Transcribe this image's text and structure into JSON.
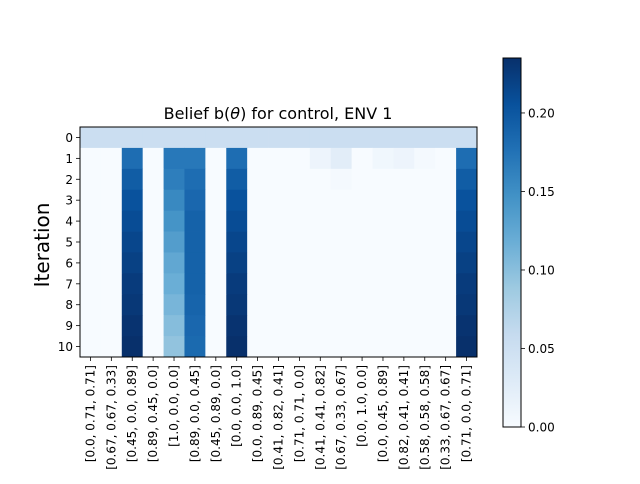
{
  "chart_data": {
    "type": "heatmap",
    "title": "Belief b(θ) for control, ENV 1",
    "title_parts": {
      "prefix": "Belief b(",
      "symbol": "θ",
      "suffix": ") for control, ENV 1"
    },
    "ylabel": "Iteration",
    "xlabel": "",
    "colormap": "Blues",
    "colorbar": {
      "vmin": 0.0,
      "vmax": 0.235,
      "ticks": [
        "0.00",
        "0.05",
        "0.10",
        "0.15",
        "0.20"
      ],
      "tick_values": [
        0.0,
        0.05,
        0.1,
        0.15,
        0.2
      ]
    },
    "y_categories": [
      "0",
      "1",
      "2",
      "3",
      "4",
      "5",
      "6",
      "7",
      "8",
      "9",
      "10"
    ],
    "x_categories": [
      "[0.0, 0.71, 0.71]",
      "[0.67, 0.67, 0.33]",
      "[0.45, 0.0, 0.89]",
      "[0.89, 0.45, 0.0]",
      "[1.0, 0.0, 0.0]",
      "[0.89, 0.0, 0.45]",
      "[0.45, 0.89, 0.0]",
      "[0.0, 0.0, 1.0]",
      "[0.0, 0.89, 0.45]",
      "[0.41, 0.82, 0.41]",
      "[0.71, 0.71, 0.0]",
      "[0.41, 0.41, 0.82]",
      "[0.67, 0.33, 0.67]",
      "[0.0, 1.0, 0.0]",
      "[0.0, 0.45, 0.89]",
      "[0.82, 0.41, 0.41]",
      "[0.58, 0.58, 0.58]",
      "[0.33, 0.67, 0.67]",
      "[0.71, 0.0, 0.71]"
    ],
    "x_tick_labels_shown": [
      "[0.0, 0.71, 0.71]",
      "[0.67, 0.67, 0.33]",
      "[0.45, 0.0, 0.89]",
      "[0.89, 0.45, 0.0]",
      "[1.0, 0.0, 0.0]",
      "[0.89, 0.0, 0.45]",
      "[0.45, 0.89, 0.0]",
      "[0.0, 0.0, 1.0]",
      "[0.0, 0.89, 0.45]",
      "[0.41, 0.82, 0.41]",
      "[0.71, 0.71, 0.0]",
      "[0.41, 0.41, 0.82]",
      "[0.67, 0.33, 0.67]",
      "[0.0, 1.0, 0.0]",
      "[0.0, 0.45, 0.89]",
      "[0.82, 0.41, 0.41]",
      "[0.58, 0.58, 0.58]",
      "[0.33, 0.67, 0.67]",
      "[0.71, 0.0, 0.71]"
    ],
    "values": [
      [
        0.053,
        0.053,
        0.053,
        0.053,
        0.053,
        0.053,
        0.053,
        0.053,
        0.053,
        0.053,
        0.053,
        0.053,
        0.053,
        0.053,
        0.053,
        0.053,
        0.053,
        0.053,
        0.053
      ],
      [
        0.0,
        0.0,
        0.18,
        0.0,
        0.17,
        0.17,
        0.0,
        0.18,
        0.0,
        0.0,
        0.0,
        0.012,
        0.025,
        0.0,
        0.008,
        0.012,
        0.004,
        0.0,
        0.18
      ],
      [
        0.0,
        0.0,
        0.195,
        0.0,
        0.165,
        0.18,
        0.0,
        0.195,
        0.0,
        0.0,
        0.0,
        0.0,
        0.004,
        0.0,
        0.0,
        0.0,
        0.0,
        0.0,
        0.195
      ],
      [
        0.0,
        0.0,
        0.205,
        0.0,
        0.155,
        0.185,
        0.0,
        0.205,
        0.0,
        0.0,
        0.0,
        0.0,
        0.0,
        0.0,
        0.0,
        0.0,
        0.0,
        0.0,
        0.205
      ],
      [
        0.0,
        0.0,
        0.21,
        0.0,
        0.145,
        0.19,
        0.0,
        0.21,
        0.0,
        0.0,
        0.0,
        0.0,
        0.0,
        0.0,
        0.0,
        0.0,
        0.0,
        0.0,
        0.21
      ],
      [
        0.0,
        0.0,
        0.215,
        0.0,
        0.135,
        0.19,
        0.0,
        0.215,
        0.0,
        0.0,
        0.0,
        0.0,
        0.0,
        0.0,
        0.0,
        0.0,
        0.0,
        0.0,
        0.215
      ],
      [
        0.0,
        0.0,
        0.22,
        0.0,
        0.125,
        0.19,
        0.0,
        0.22,
        0.0,
        0.0,
        0.0,
        0.0,
        0.0,
        0.0,
        0.0,
        0.0,
        0.0,
        0.0,
        0.22
      ],
      [
        0.0,
        0.0,
        0.225,
        0.0,
        0.118,
        0.19,
        0.0,
        0.225,
        0.0,
        0.0,
        0.0,
        0.0,
        0.0,
        0.0,
        0.0,
        0.0,
        0.0,
        0.0,
        0.225
      ],
      [
        0.0,
        0.0,
        0.228,
        0.0,
        0.11,
        0.188,
        0.0,
        0.228,
        0.0,
        0.0,
        0.0,
        0.0,
        0.0,
        0.0,
        0.0,
        0.0,
        0.0,
        0.0,
        0.228
      ],
      [
        0.0,
        0.0,
        0.232,
        0.0,
        0.102,
        0.185,
        0.0,
        0.232,
        0.0,
        0.0,
        0.0,
        0.0,
        0.0,
        0.0,
        0.0,
        0.0,
        0.0,
        0.0,
        0.232
      ],
      [
        0.0,
        0.0,
        0.235,
        0.0,
        0.095,
        0.183,
        0.0,
        0.235,
        0.0,
        0.0,
        0.0,
        0.0,
        0.0,
        0.0,
        0.0,
        0.0,
        0.0,
        0.0,
        0.235
      ]
    ]
  }
}
